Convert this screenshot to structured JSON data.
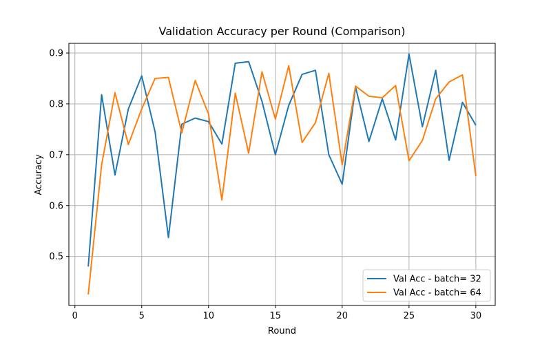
{
  "chart_data": {
    "type": "line",
    "title": "Validation Accuracy per Round (Comparison)",
    "xlabel": "Round",
    "ylabel": "Accuracy",
    "xlim": [
      -0.45,
      31.45
    ],
    "ylim": [
      0.4035,
      0.919
    ],
    "xticks": [
      0,
      5,
      10,
      15,
      20,
      25,
      30
    ],
    "yticks": [
      0.5,
      0.6,
      0.7,
      0.8,
      0.9
    ],
    "xtick_labels": [
      "0",
      "5",
      "10",
      "15",
      "20",
      "25",
      "30"
    ],
    "ytick_labels": [
      "0.5",
      "0.6",
      "0.7",
      "0.8",
      "0.9"
    ],
    "grid": true,
    "legend_position": "lower-right",
    "x": [
      1,
      2,
      3,
      4,
      5,
      6,
      7,
      8,
      9,
      10,
      11,
      12,
      13,
      14,
      15,
      16,
      17,
      18,
      19,
      20,
      21,
      22,
      23,
      24,
      25,
      26,
      27,
      28,
      29,
      30
    ],
    "series": [
      {
        "name": "Val Acc - batch= 32",
        "color": "#1f77b4",
        "values": [
          0.48,
          0.818,
          0.66,
          0.79,
          0.855,
          0.745,
          0.537,
          0.76,
          0.772,
          0.765,
          0.721,
          0.88,
          0.883,
          0.805,
          0.7,
          0.797,
          0.858,
          0.866,
          0.7,
          0.642,
          0.833,
          0.726,
          0.81,
          0.729,
          0.898,
          0.755,
          0.866,
          0.689,
          0.803,
          0.758
        ]
      },
      {
        "name": "Val Acc - batch= 64",
        "color": "#ff7f0e",
        "values": [
          0.425,
          0.68,
          0.822,
          0.72,
          0.79,
          0.85,
          0.852,
          0.743,
          0.846,
          0.78,
          0.611,
          0.821,
          0.703,
          0.863,
          0.77,
          0.875,
          0.724,
          0.763,
          0.86,
          0.68,
          0.835,
          0.815,
          0.812,
          0.836,
          0.688,
          0.728,
          0.81,
          0.843,
          0.857,
          0.658
        ]
      }
    ]
  }
}
